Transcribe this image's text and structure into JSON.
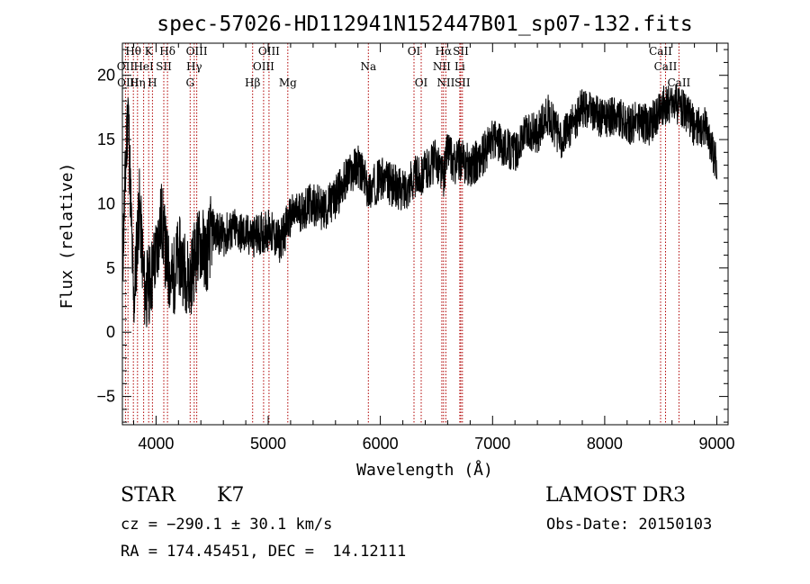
{
  "chart_data": {
    "type": "line",
    "title": "spec-57026-HD112941N152447B01_sp07-132.fits",
    "xlabel": "Wavelength (Å)",
    "ylabel": "Flux (relative)",
    "xlim": [
      3700,
      9100
    ],
    "ylim": [
      -7.2,
      22.5
    ],
    "xticks": [
      4000,
      5000,
      6000,
      7000,
      8000,
      9000
    ],
    "yticks": [
      -5,
      0,
      5,
      10,
      15,
      20
    ],
    "grid": false,
    "series": [
      {
        "x": [
          3700,
          3750,
          3800,
          3850,
          3900,
          3950,
          4000,
          4050,
          4100,
          4150,
          4200,
          4250,
          4300,
          4350,
          4400,
          4450,
          4500,
          4600,
          4700,
          4800,
          4900,
          5000,
          5100,
          5200,
          5300,
          5400,
          5500,
          5600,
          5700,
          5800,
          5900,
          6000,
          6100,
          6200,
          6300,
          6400,
          6500,
          6563,
          6600,
          6650,
          6700,
          6800,
          6900,
          7000,
          7100,
          7200,
          7300,
          7400,
          7500,
          7600,
          7700,
          7800,
          7900,
          8000,
          8100,
          8200,
          8300,
          8400,
          8500,
          8600,
          8700,
          8800,
          8900,
          9000
        ],
        "y": [
          5,
          18,
          2,
          10,
          3,
          4,
          6,
          9,
          5,
          4,
          6,
          5,
          4,
          6,
          7,
          6,
          8,
          7.5,
          8,
          7.5,
          7.5,
          8,
          7,
          9,
          9.5,
          10,
          9.5,
          10.5,
          12,
          13,
          11,
          12,
          11.5,
          11,
          12,
          12.5,
          13.5,
          12,
          14.5,
          13,
          13.5,
          13,
          13.5,
          15,
          14.5,
          14,
          15.5,
          15.5,
          17,
          15,
          16,
          17.5,
          17,
          16.5,
          17,
          16,
          16.5,
          16,
          17.5,
          18,
          17.5,
          16,
          16,
          13
        ]
      }
    ],
    "annotations": [
      {
        "text": "Hθ",
        "x": 3798,
        "row": 1
      },
      {
        "text": "K",
        "x": 3934,
        "row": 1
      },
      {
        "text": "Hδ",
        "x": 4102,
        "row": 1
      },
      {
        "text": "OIII",
        "x": 4363,
        "row": 1
      },
      {
        "text": "OIII",
        "x": 5007,
        "row": 1
      },
      {
        "text": "OI",
        "x": 6300,
        "row": 1
      },
      {
        "text": "Hα",
        "x": 6563,
        "row": 1
      },
      {
        "text": "SII",
        "x": 6717,
        "row": 1
      },
      {
        "text": "CaII",
        "x": 8498,
        "row": 1
      },
      {
        "text": "OII",
        "x": 3727,
        "row": 2
      },
      {
        "text": "HeI",
        "x": 3889,
        "row": 2
      },
      {
        "text": "SII",
        "x": 4069,
        "row": 2
      },
      {
        "text": "Hγ",
        "x": 4340,
        "row": 2
      },
      {
        "text": "OIII",
        "x": 4959,
        "row": 2
      },
      {
        "text": "Na",
        "x": 5893,
        "row": 2
      },
      {
        "text": "NII",
        "x": 6548,
        "row": 2
      },
      {
        "text": "Li",
        "x": 6708,
        "row": 2
      },
      {
        "text": "CaII",
        "x": 8542,
        "row": 2
      },
      {
        "text": "OIII",
        "x": 3750,
        "row": 3
      },
      {
        "text": "Hη",
        "x": 3835,
        "row": 3
      },
      {
        "text": "H",
        "x": 3968,
        "row": 3
      },
      {
        "text": "G",
        "x": 4304,
        "row": 3
      },
      {
        "text": "Hβ",
        "x": 4861,
        "row": 3
      },
      {
        "text": "Mg",
        "x": 5175,
        "row": 3
      },
      {
        "text": "OI",
        "x": 6364,
        "row": 3
      },
      {
        "text": "NII",
        "x": 6584,
        "row": 3
      },
      {
        "text": "SII",
        "x": 6731,
        "row": 3
      },
      {
        "text": "CaII",
        "x": 8662,
        "row": 3
      }
    ],
    "lines": [
      3727,
      3750,
      3798,
      3835,
      3889,
      3934,
      3968,
      4069,
      4102,
      4304,
      4340,
      4363,
      4861,
      4959,
      5007,
      5175,
      5893,
      6300,
      6364,
      6548,
      6563,
      6584,
      6708,
      6717,
      6731,
      8498,
      8542,
      8662
    ],
    "colors": {
      "axes": "#000000",
      "spectrum": "#000000",
      "lines": "#b00000"
    }
  },
  "info": {
    "obj_class": "STAR",
    "subclass": "K7",
    "survey": "LAMOST DR3",
    "cz": "cz = −290.1 ± 30.1 km/s",
    "obs_date": "Obs-Date: 20150103",
    "coords": "RA = 174.45451, DEC =  14.12111"
  }
}
